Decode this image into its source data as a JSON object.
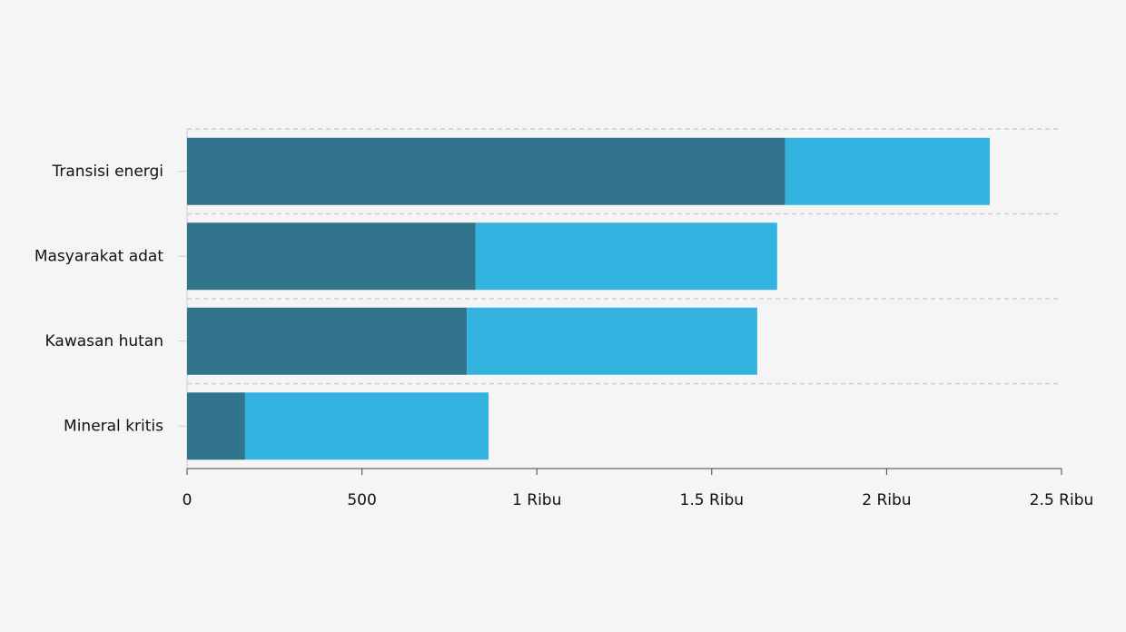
{
  "chart_data": {
    "type": "stacked-bar-horizontal",
    "categories": [
      "Transisi energi",
      "Masyarakat adat",
      "Kawasan hutan",
      "Mineral kritis"
    ],
    "series": [
      {
        "color": "#31748c",
        "values": [
          1710,
          825,
          800,
          166
        ]
      },
      {
        "color": "#33b3e0",
        "values": [
          585,
          862,
          830,
          696
        ]
      }
    ],
    "xlim": [
      0,
      2500
    ],
    "xticks": [
      0,
      500,
      {
        "value": 1000,
        "label": "1 Ribu"
      },
      {
        "value": 1500,
        "label": "1.5 Ribu"
      },
      {
        "value": 2000,
        "label": "2 Ribu"
      },
      {
        "value": 2500,
        "label": "2.5 Ribu"
      }
    ]
  }
}
